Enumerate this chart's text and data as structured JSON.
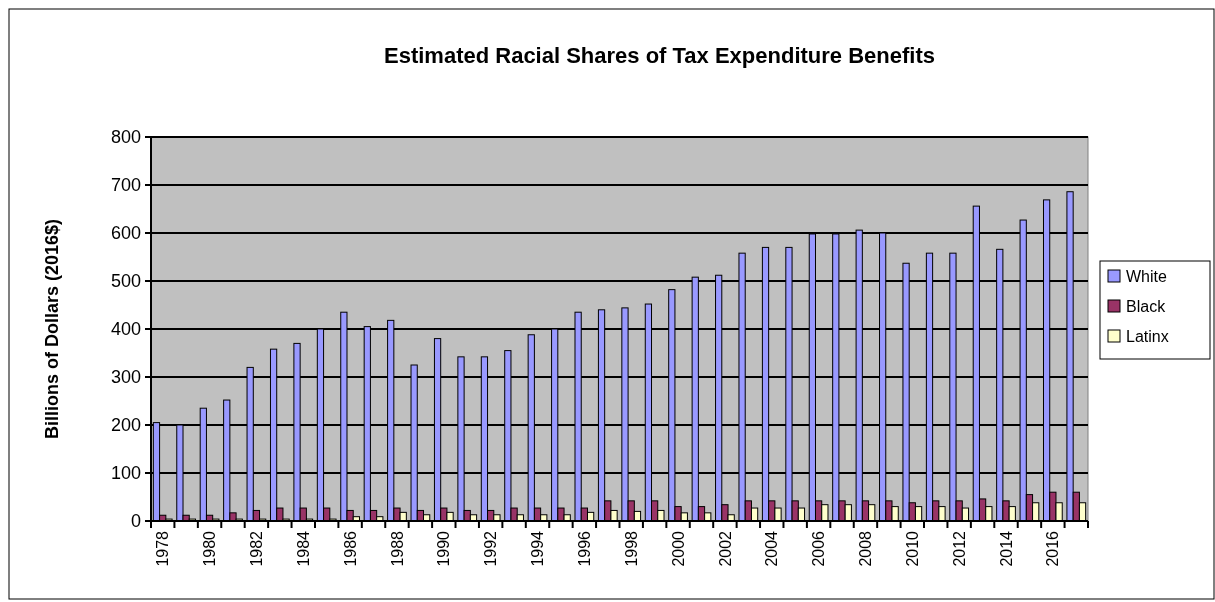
{
  "chart_data": {
    "type": "bar",
    "title": "Estimated Racial Shares of Tax Expenditure Benefits",
    "ylabel": "Billions of Dollars (2016$)",
    "categories": [
      "1978",
      null,
      "1980",
      null,
      "1982",
      null,
      "1984",
      null,
      "1986",
      null,
      "1988",
      null,
      "1990",
      null,
      "1992",
      null,
      "1994",
      null,
      "1996",
      null,
      "1998",
      null,
      "2000",
      null,
      "2002",
      null,
      "2004",
      null,
      "2006",
      null,
      "2008",
      null,
      "2010",
      null,
      "2012",
      null,
      "2014",
      null,
      "2016",
      null
    ],
    "series": [
      {
        "name": "White",
        "color": "#9999ff",
        "values": [
          205,
          200,
          235,
          252,
          320,
          358,
          370,
          400,
          435,
          405,
          418,
          325,
          380,
          342,
          342,
          355,
          388,
          400,
          435,
          440,
          444,
          452,
          482,
          508,
          512,
          558,
          570,
          570,
          598,
          598,
          606,
          600,
          537,
          558,
          558,
          656,
          566,
          627,
          669,
          686
        ]
      },
      {
        "name": "Black",
        "color": "#993366",
        "values": [
          12,
          12,
          12,
          17,
          22,
          27,
          27,
          27,
          22,
          22,
          27,
          22,
          27,
          22,
          22,
          27,
          27,
          27,
          27,
          42,
          42,
          42,
          30,
          30,
          34,
          42,
          42,
          42,
          42,
          42,
          42,
          42,
          38,
          42,
          42,
          46,
          42,
          55,
          60,
          60
        ]
      },
      {
        "name": "Latinx",
        "color": "#ffffcc",
        "values": [
          4,
          4,
          4,
          4,
          4,
          4,
          4,
          4,
          9,
          9,
          18,
          13,
          18,
          13,
          13,
          13,
          13,
          13,
          18,
          22,
          20,
          22,
          17,
          17,
          13,
          27,
          27,
          27,
          34,
          34,
          34,
          30,
          30,
          30,
          27,
          30,
          30,
          38,
          38,
          38
        ]
      }
    ],
    "ylim": [
      0,
      800
    ],
    "yticks": [
      0,
      100,
      200,
      300,
      400,
      500,
      600,
      700,
      800
    ],
    "grid": "y",
    "legend": "right"
  }
}
